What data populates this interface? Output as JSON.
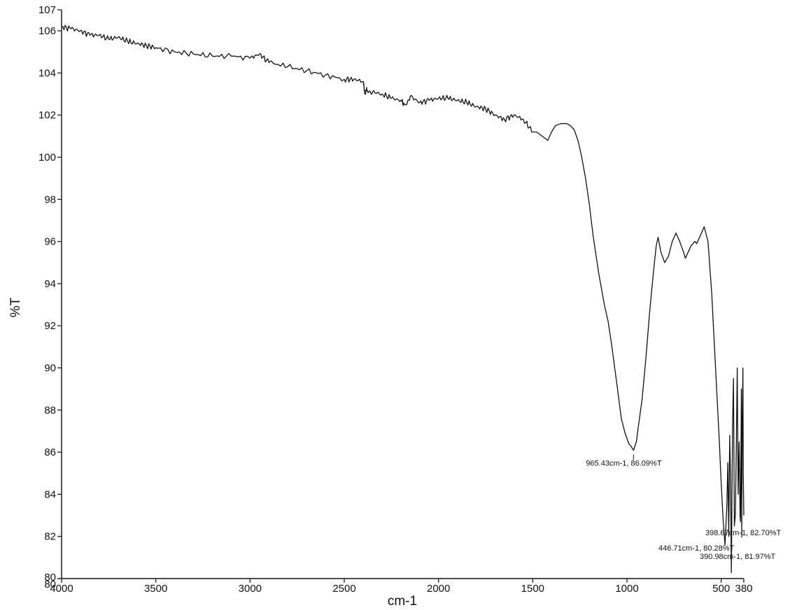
{
  "chart_data": {
    "type": "line",
    "title": "",
    "xlabel": "cm-1",
    "ylabel": "%T",
    "xlim": [
      4000,
      380
    ],
    "ylim": [
      80,
      107
    ],
    "x_ticks": [
      "4000",
      "3500",
      "3000",
      "2500",
      "2000",
      "1500",
      "1000",
      "500",
      "380"
    ],
    "y_ticks": [
      "80",
      "80",
      "82",
      "84",
      "86",
      "88",
      "90",
      "92",
      "94",
      "96",
      "98",
      "100",
      "102",
      "104",
      "106",
      "107"
    ],
    "grid": false,
    "series": [
      {
        "x": [
          4000,
          3950,
          3900,
          3850,
          3800,
          3750,
          3700,
          3650,
          3600,
          3550,
          3500,
          3400,
          3300,
          3200,
          3100,
          3000,
          2950,
          2900,
          2800,
          2700,
          2600,
          2500,
          2450,
          2400,
          2390,
          2380,
          2350,
          2300,
          2250,
          2200,
          2180,
          2150,
          2100,
          2050,
          2000,
          1950,
          1900,
          1850,
          1800,
          1750,
          1700,
          1650,
          1600,
          1550,
          1500,
          1480,
          1450,
          1420,
          1400,
          1380,
          1350,
          1320,
          1300,
          1280,
          1260,
          1240,
          1220,
          1200,
          1180,
          1150,
          1120,
          1100,
          1080,
          1050,
          1030,
          1010,
          990,
          980,
          965,
          950,
          940,
          920,
          900,
          880,
          860,
          845,
          835,
          820,
          800,
          780,
          760,
          750,
          740,
          720,
          700,
          690,
          680,
          660,
          640,
          630,
          620,
          610,
          600,
          590,
          570,
          550,
          530,
          510,
          500,
          490,
          480,
          470,
          465,
          460,
          455,
          450,
          446,
          440,
          435,
          430,
          425,
          420,
          415,
          410,
          405,
          400,
          398,
          395,
          393,
          391,
          388,
          385,
          383,
          380
        ],
        "y": [
          106.2,
          106.1,
          106.0,
          105.8,
          105.8,
          105.6,
          105.7,
          105.5,
          105.4,
          105.3,
          105.2,
          105.0,
          104.9,
          104.8,
          104.8,
          104.7,
          104.9,
          104.5,
          104.3,
          104.1,
          103.9,
          103.7,
          103.7,
          103.6,
          103.0,
          103.2,
          103.1,
          103.0,
          102.8,
          102.7,
          102.5,
          102.9,
          102.6,
          102.7,
          102.8,
          102.8,
          102.7,
          102.6,
          102.4,
          102.3,
          102.0,
          101.8,
          102.0,
          101.8,
          101.2,
          101.2,
          101.0,
          100.8,
          101.2,
          101.5,
          101.6,
          101.6,
          101.5,
          101.3,
          100.8,
          100.0,
          99.0,
          97.8,
          96.3,
          94.5,
          93.0,
          92.2,
          91.0,
          89.0,
          87.6,
          86.9,
          86.4,
          86.3,
          86.09,
          86.5,
          87.2,
          88.5,
          90.4,
          92.6,
          94.5,
          95.8,
          96.2,
          95.5,
          95.0,
          95.3,
          96.0,
          96.2,
          96.4,
          96.0,
          95.5,
          95.2,
          95.4,
          95.8,
          96.0,
          95.9,
          96.1,
          96.3,
          96.5,
          96.7,
          96.0,
          93.5,
          90.0,
          86.5,
          84.5,
          82.8,
          81.6,
          83.5,
          85.5,
          82.0,
          86.8,
          84.5,
          80.28,
          87.0,
          89.5,
          82.5,
          83.0,
          86.0,
          90.0,
          84.0,
          86.5,
          83.0,
          82.7,
          86.5,
          89.0,
          81.97,
          87.5,
          90.0,
          85.0,
          83.0
        ]
      }
    ],
    "annotations": [
      {
        "text": "965.43cm-1, 86.09%T",
        "x": 965.43,
        "y": 86.09
      },
      {
        "text": "398.67cm-1, 82.70%T",
        "x": 398.67,
        "y": 82.7
      },
      {
        "text": "446.71cm-1, 80.28%T",
        "x": 446.71,
        "y": 80.28
      },
      {
        "text": "390.98cm-1, 81.97%T",
        "x": 390.98,
        "y": 81.97
      }
    ],
    "colors": {
      "line": "#111111",
      "axis": "#111111"
    }
  }
}
